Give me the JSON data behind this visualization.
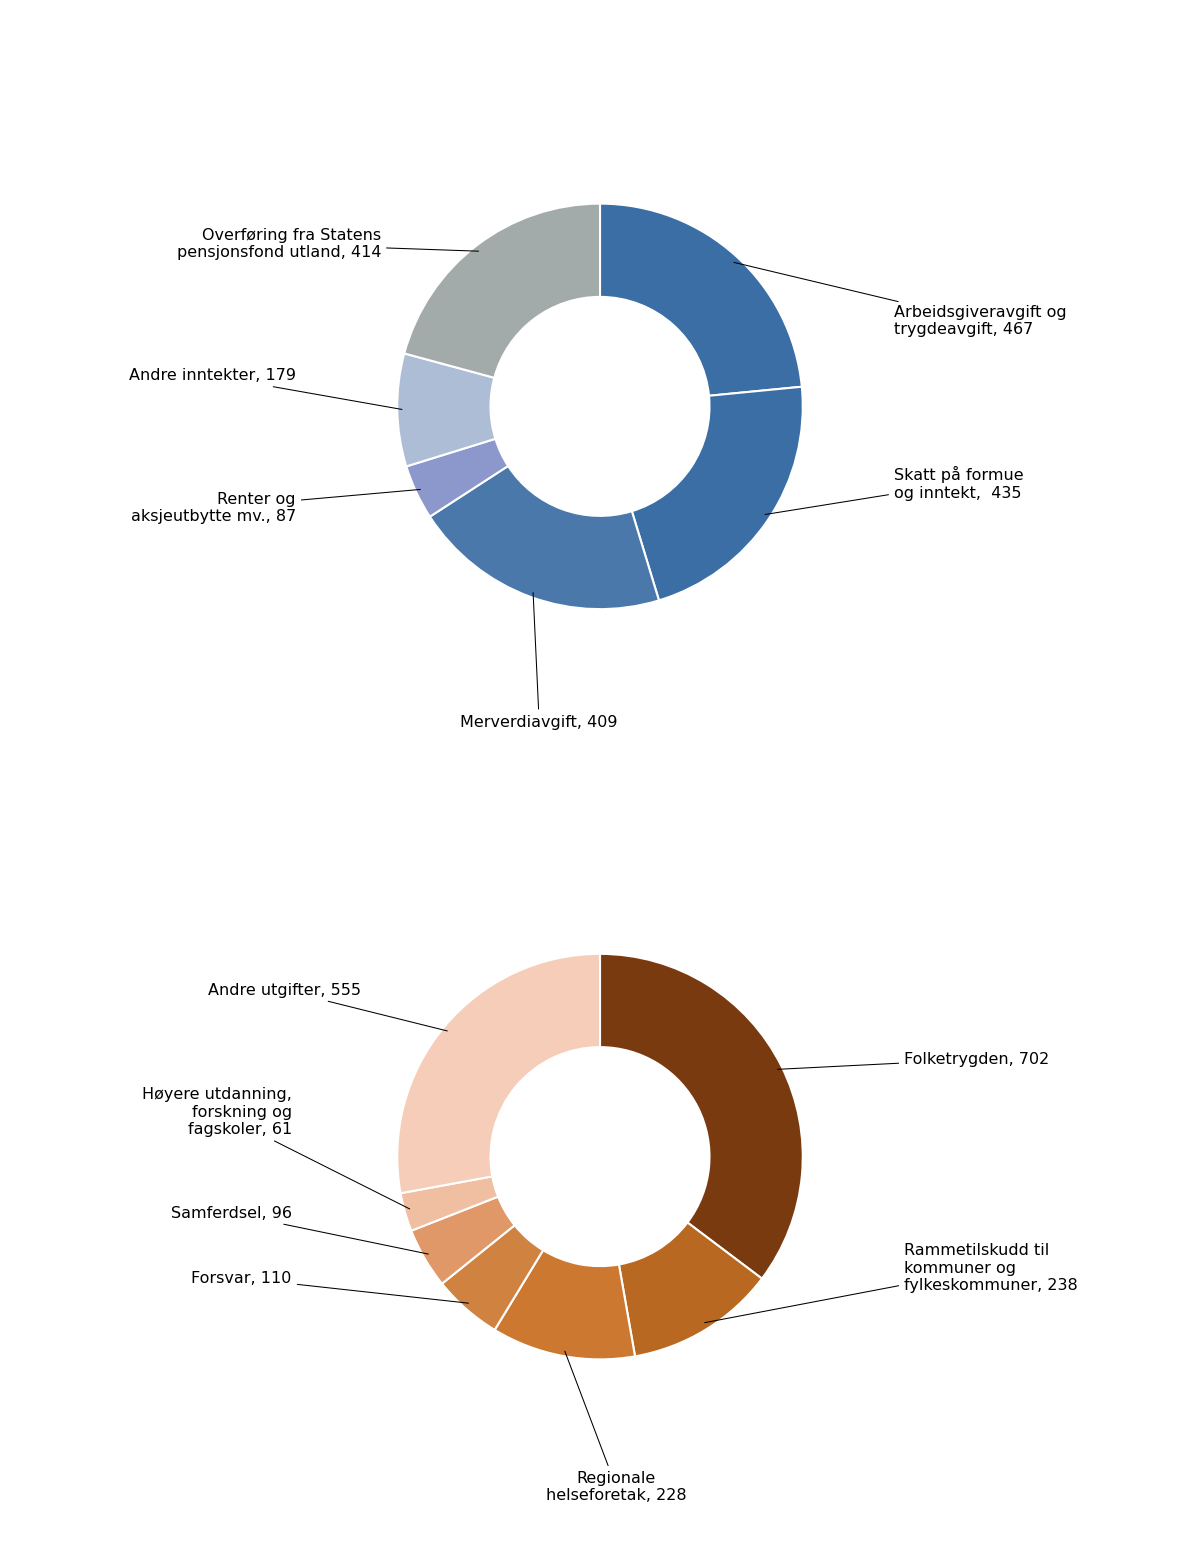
{
  "chart1_values": [
    467,
    435,
    409,
    87,
    179,
    414
  ],
  "chart1_colors": [
    "#3a6ea5",
    "#3a6ea5",
    "#4a78aa",
    "#8c97cc",
    "#adbdd6",
    "#a2aaaa"
  ],
  "chart1_annots": [
    {
      "text": "Arbeidsgiveravgift og\ntrygdeavgift, 467",
      "xt": 1.45,
      "yt": 0.42,
      "ha": "left",
      "va": "center"
    },
    {
      "text": "Skatt på formue\nog inntekt,  435",
      "xt": 1.45,
      "yt": -0.38,
      "ha": "left",
      "va": "center"
    },
    {
      "text": "Merverdiavgift, 409",
      "xt": -0.3,
      "yt": -1.52,
      "ha": "center",
      "va": "top"
    },
    {
      "text": "Renter og\naksjeutbytte mv., 87",
      "xt": -1.5,
      "yt": -0.5,
      "ha": "right",
      "va": "center"
    },
    {
      "text": "Andre inntekter, 179",
      "xt": -1.5,
      "yt": 0.15,
      "ha": "right",
      "va": "center"
    },
    {
      "text": "Overføring fra Statens\npensjonsfond utland, 414",
      "xt": -1.08,
      "yt": 0.8,
      "ha": "right",
      "va": "center"
    }
  ],
  "chart2_values": [
    702,
    238,
    228,
    110,
    96,
    61,
    555
  ],
  "chart2_colors": [
    "#7a3a10",
    "#b86820",
    "#cc7830",
    "#d08240",
    "#e09868",
    "#f0bea0",
    "#f5cdb8"
  ],
  "chart2_annots": [
    {
      "text": "Folketrygden, 702",
      "xt": 1.5,
      "yt": 0.48,
      "ha": "left",
      "va": "center"
    },
    {
      "text": "Rammetilskudd til\nkommuner og\nfylkeskommuner, 238",
      "xt": 1.5,
      "yt": -0.55,
      "ha": "left",
      "va": "center"
    },
    {
      "text": "Regionale\nhelseforetak, 228",
      "xt": 0.08,
      "yt": -1.55,
      "ha": "center",
      "va": "top"
    },
    {
      "text": "Forsvar, 110",
      "xt": -1.52,
      "yt": -0.6,
      "ha": "right",
      "va": "center"
    },
    {
      "text": "Samferdsel, 96",
      "xt": -1.52,
      "yt": -0.28,
      "ha": "right",
      "va": "center"
    },
    {
      "text": "Høyere utdanning,\nforskning og\nfagskoler, 61",
      "xt": -1.52,
      "yt": 0.22,
      "ha": "right",
      "va": "center"
    },
    {
      "text": "Andre utgifter, 555",
      "xt": -1.18,
      "yt": 0.82,
      "ha": "right",
      "va": "center"
    }
  ],
  "figure_width": 12.0,
  "figure_height": 15.63,
  "font_size": 11.5,
  "bg_color": "#ffffff",
  "donut_width": 0.46,
  "edge_color": "white",
  "edge_lw": 1.5,
  "r_tip": 0.99,
  "arrow_color": "black",
  "arrow_lw": 0.75
}
